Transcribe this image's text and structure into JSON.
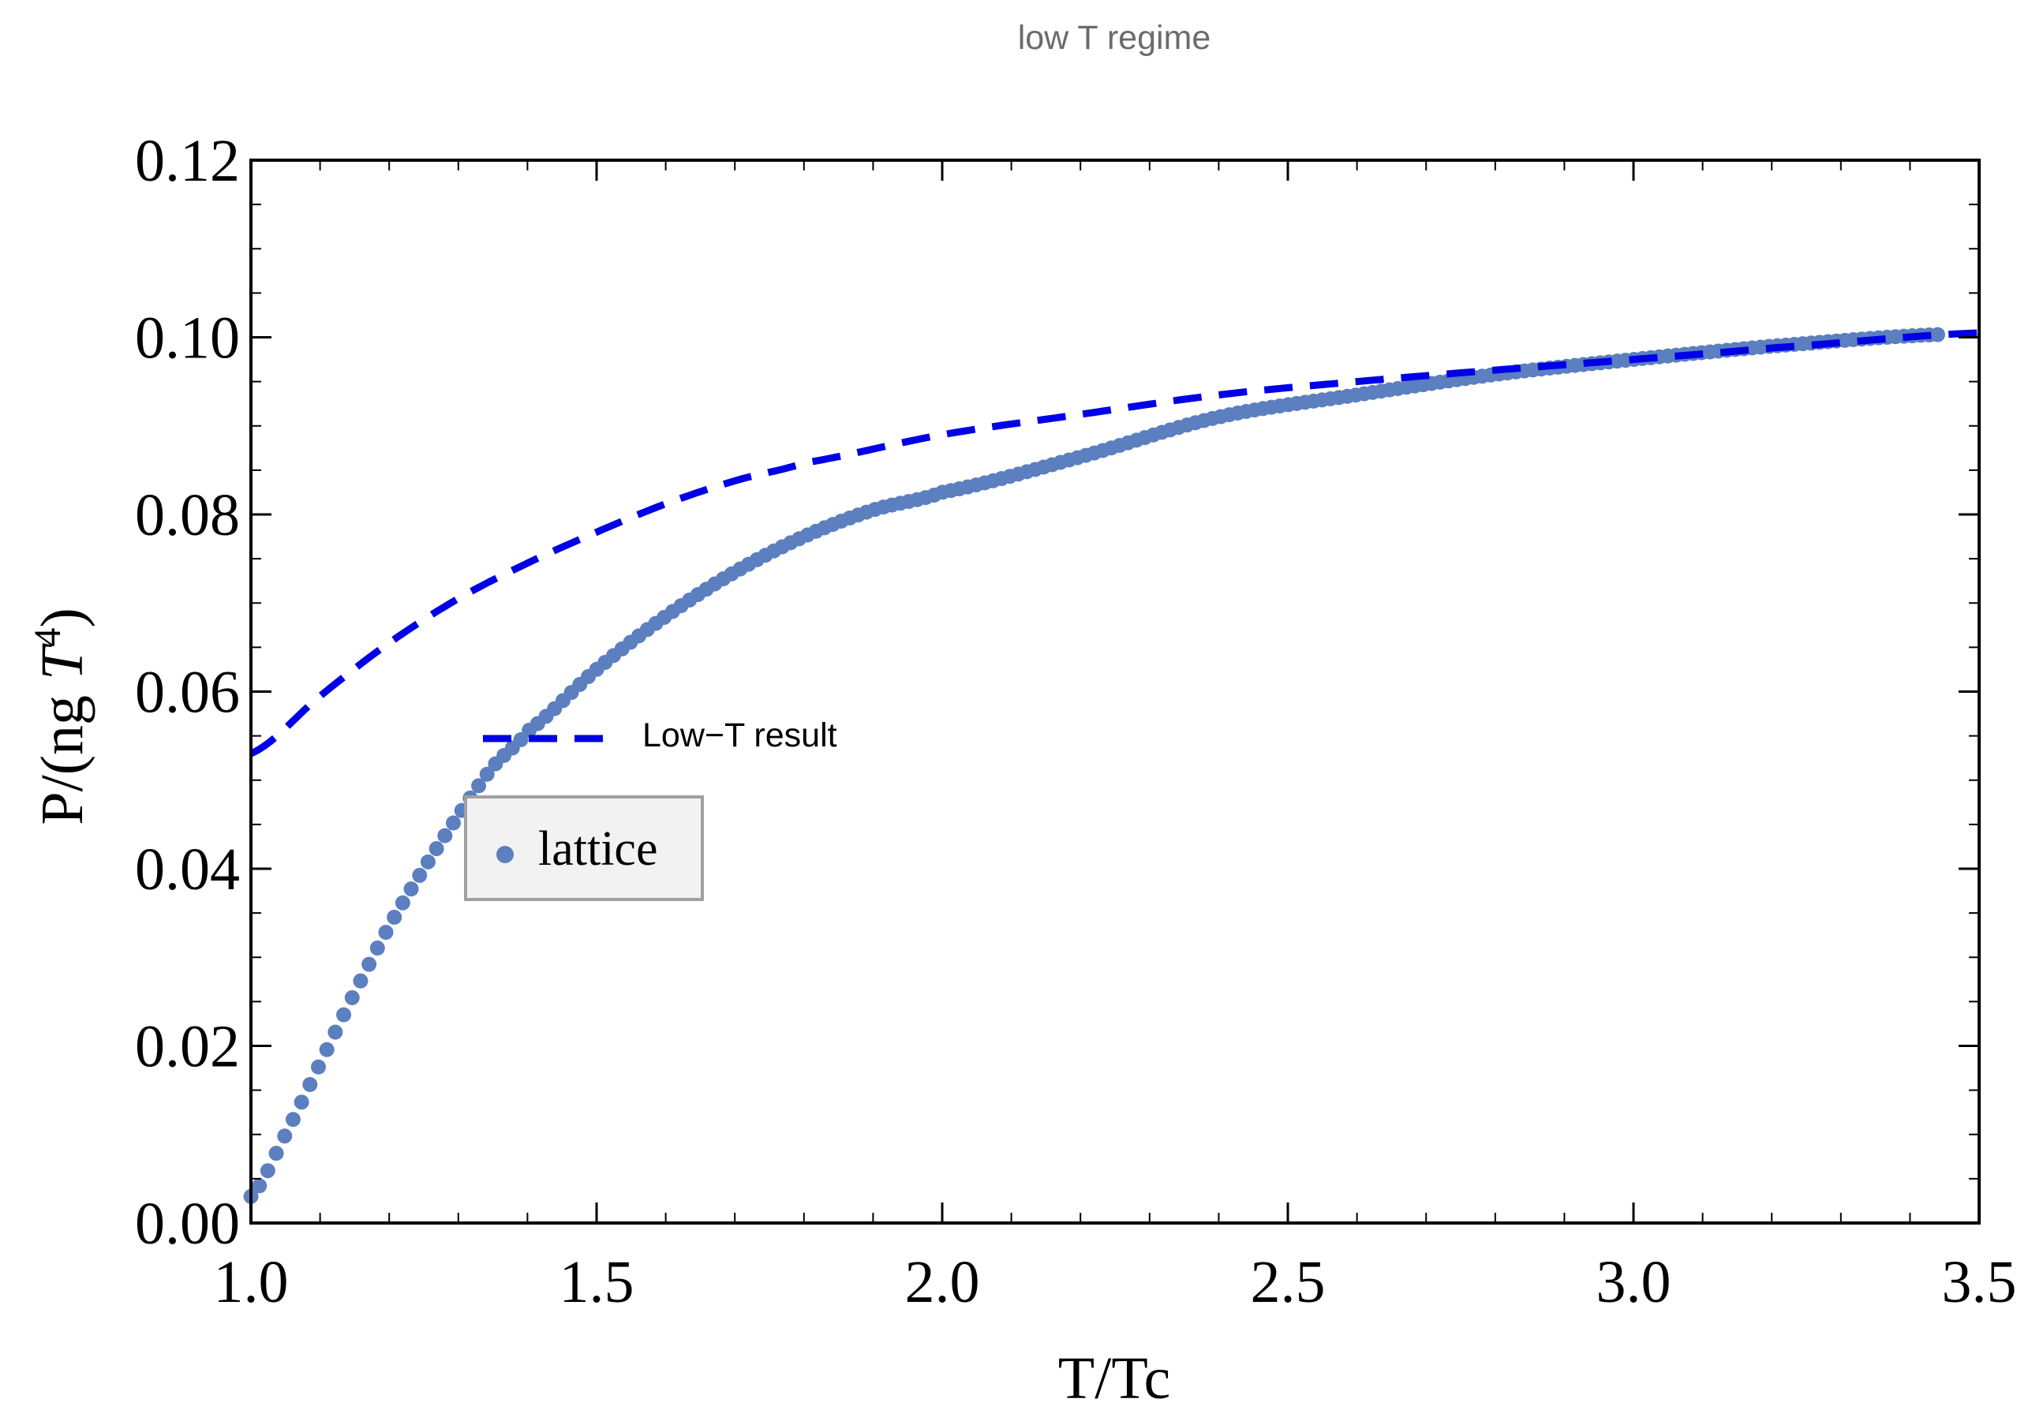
{
  "chart_data": {
    "type": "scatter",
    "title": "low T regime",
    "xlabel": "T/Tc",
    "ylabel_prefix": "P/(ng ",
    "ylabel_var": "T",
    "ylabel_exp": "4",
    "ylabel_suffix": ")",
    "xlim": [
      1.0,
      3.5
    ],
    "ylim": [
      0.0,
      0.12
    ],
    "x_ticks": [
      1.0,
      1.5,
      2.0,
      2.5,
      3.0,
      3.5
    ],
    "x_tick_labels": [
      "1.0",
      "1.5",
      "2.0",
      "2.5",
      "3.0",
      "3.5"
    ],
    "y_ticks": [
      0.0,
      0.02,
      0.04,
      0.06,
      0.08,
      0.1,
      0.12
    ],
    "y_tick_labels": [
      "0.00",
      "0.02",
      "0.04",
      "0.06",
      "0.08",
      "0.10",
      "0.12"
    ],
    "grid": false,
    "series": [
      {
        "name": "lattice",
        "kind": "points",
        "color": "#5b7fbf",
        "x": [
          1.0,
          1.05,
          1.1,
          1.15,
          1.2,
          1.25,
          1.3,
          1.35,
          1.4,
          1.5,
          1.6,
          1.7,
          1.8,
          1.9,
          2.0,
          2.2,
          2.4,
          2.6,
          2.8,
          3.0,
          3.2,
          3.44
        ],
        "y": [
          0.003,
          0.01,
          0.018,
          0.026,
          0.0335,
          0.04,
          0.046,
          0.0515,
          0.0555,
          0.0625,
          0.0685,
          0.0735,
          0.0775,
          0.0805,
          0.0825,
          0.0865,
          0.091,
          0.0935,
          0.0958,
          0.0975,
          0.099,
          0.1003
        ]
      },
      {
        "name": "Low-T result",
        "kind": "dashed-line",
        "color": "#0000e6",
        "x": [
          1.0,
          1.1,
          1.2,
          1.3,
          1.4,
          1.5,
          1.6,
          1.7,
          1.8,
          2.0,
          2.2,
          2.4,
          2.6,
          2.8,
          3.0,
          3.2,
          3.5
        ],
        "y": [
          0.053,
          0.0595,
          0.0655,
          0.0705,
          0.0745,
          0.078,
          0.0812,
          0.0838,
          0.0858,
          0.089,
          0.0913,
          0.0935,
          0.095,
          0.0963,
          0.0975,
          0.0988,
          0.1005
        ]
      }
    ],
    "legend": {
      "line_label": "Low−T result",
      "points_label": "lattice"
    }
  }
}
